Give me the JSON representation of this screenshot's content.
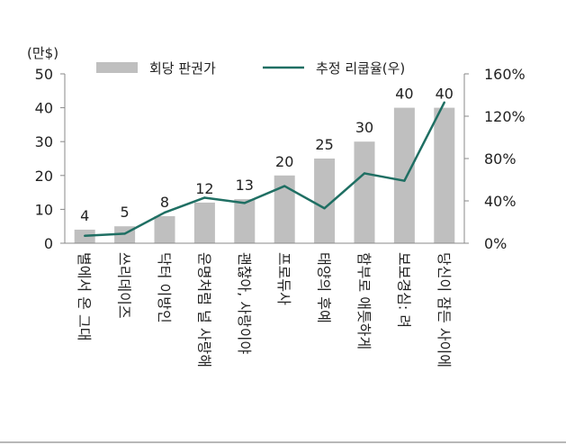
{
  "chart_data": {
    "type": "bar",
    "unit_left": "(만$)",
    "categories": [
      "별에서 온 그대",
      "쓰리데이즈",
      "닥터 이방인",
      "운명처럼 널 사랑해",
      "괜찮아, 사랑이야",
      "프로듀사",
      "태양의 후예",
      "함부로 애틋하게",
      "보보경심: 려",
      "당신이 잠든 사이에"
    ],
    "series": [
      {
        "name": "회당 판권가",
        "kind": "bar",
        "axis": "left",
        "color": "#bfbfbf",
        "values": [
          4,
          5,
          8,
          12,
          13,
          20,
          25,
          30,
          40,
          40
        ]
      },
      {
        "name": "추정 리쿱율(우)",
        "kind": "line",
        "axis": "right",
        "color": "#1f6f63",
        "values": [
          7,
          9,
          29,
          43,
          38,
          54,
          33,
          66,
          59,
          133
        ]
      }
    ],
    "data_labels": [
      "4",
      "5",
      "8",
      "12",
      "13",
      "20",
      "25",
      "30",
      "40",
      "40"
    ],
    "y_left": {
      "min": 0,
      "max": 50,
      "ticks": [
        "0",
        "10",
        "20",
        "30",
        "40",
        "50"
      ]
    },
    "y_right": {
      "min": 0,
      "max": 160,
      "ticks": [
        "0%",
        "40%",
        "80%",
        "120%",
        "160%"
      ]
    },
    "legend_position": "top-center",
    "grid": false
  }
}
